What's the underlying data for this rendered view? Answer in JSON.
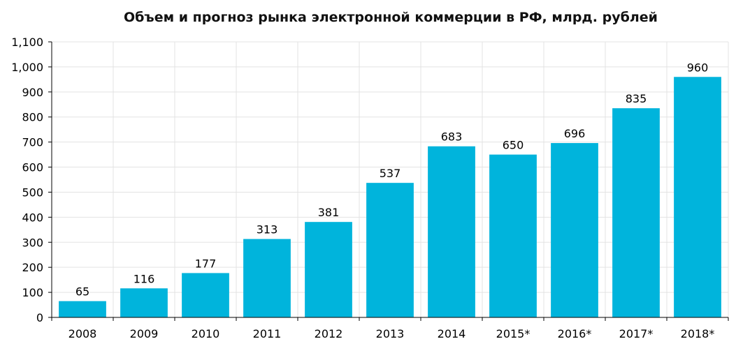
{
  "chart_data": {
    "type": "bar",
    "title": "Объем и прогноз рынка электронной коммерции в РФ, млрд. рублей",
    "categories": [
      "2008",
      "2009",
      "2010",
      "2011",
      "2012",
      "2013",
      "2014",
      "2015*",
      "2016*",
      "2017*",
      "2018*"
    ],
    "values": [
      65,
      116,
      177,
      313,
      381,
      537,
      683,
      650,
      696,
      835,
      960
    ],
    "data_labels": [
      "65",
      "116",
      "177",
      "313",
      "381",
      "537",
      "683",
      "650",
      "696",
      "835",
      "960"
    ],
    "xlabel": "",
    "ylabel": "",
    "ylim": [
      0,
      1100
    ],
    "yticks": [
      "0",
      "100",
      "200",
      "300",
      "400",
      "500",
      "600",
      "700",
      "800",
      "900",
      "1,000",
      "1,100"
    ],
    "ytick_values": [
      0,
      100,
      200,
      300,
      400,
      500,
      600,
      700,
      800,
      900,
      1000,
      1100
    ],
    "grid": true,
    "legend": "none",
    "bar_color": "#00b4dc",
    "grid_color": "#e3e3e3",
    "axis_color": "#000000"
  }
}
